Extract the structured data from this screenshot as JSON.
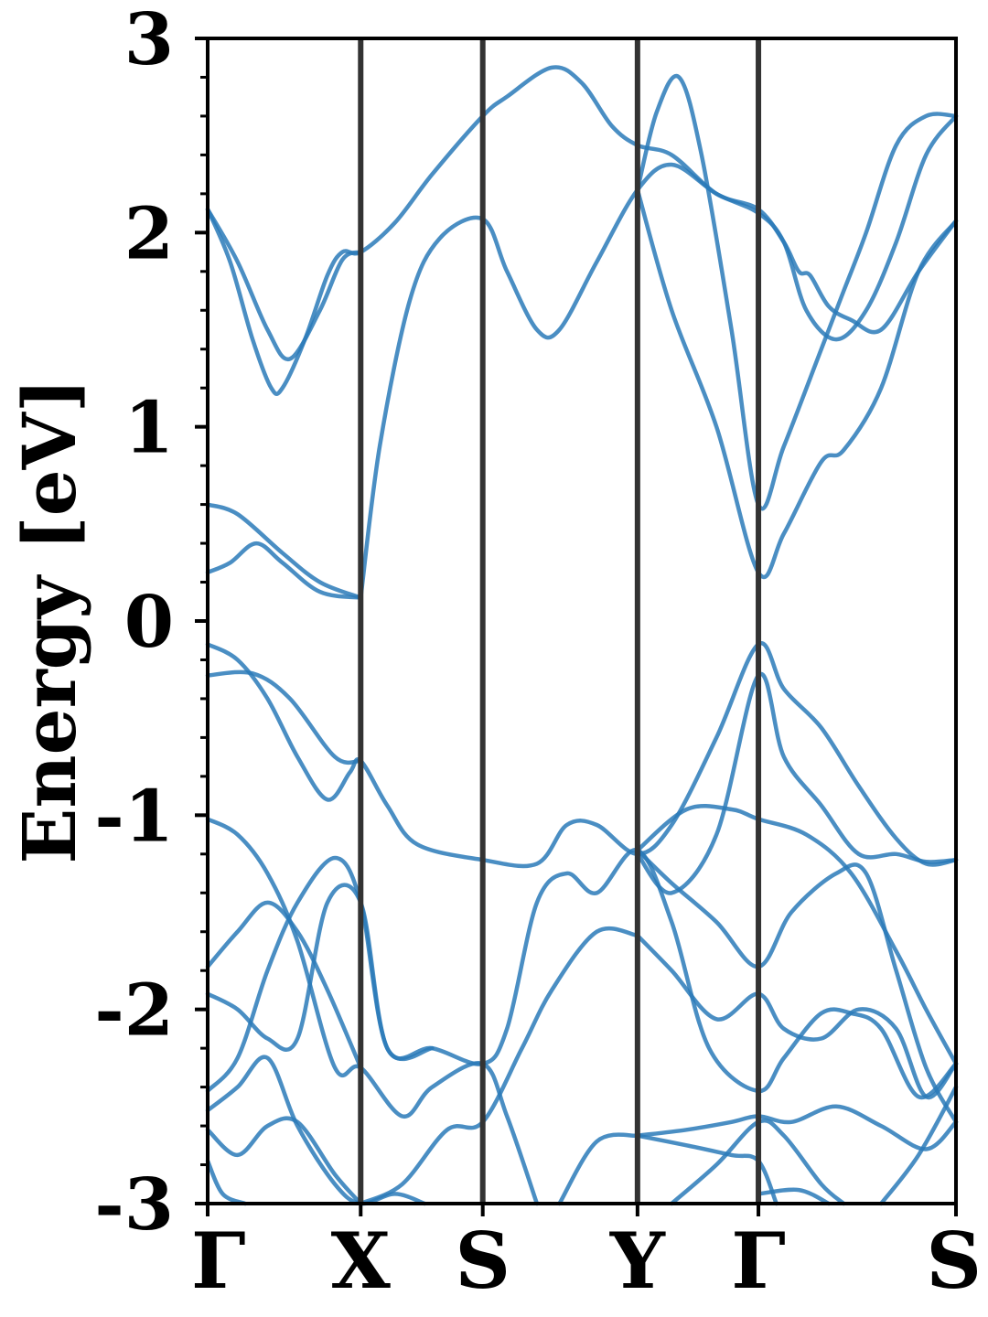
{
  "chart_data": {
    "type": "line",
    "ylabel": "Energy [eV]",
    "ylim": [
      -3,
      3
    ],
    "yticks": [
      "3",
      "2",
      "1",
      "0",
      "-1",
      "-2",
      "-3"
    ],
    "yticks_values": [
      3,
      2,
      1,
      0,
      -1,
      -2,
      -3
    ],
    "minor_tick_step": 0.2,
    "xlim": [
      0,
      1.0
    ],
    "kpoints": [
      {
        "label": "Γ",
        "x": 0.0
      },
      {
        "label": "X",
        "x": 0.2045
      },
      {
        "label": "S",
        "x": 0.3676
      },
      {
        "label": "Y",
        "x": 0.5744
      },
      {
        "label": "Γ",
        "x": 0.736
      },
      {
        "label": "S",
        "x": 1.0
      }
    ],
    "grid": false,
    "line_color": "#2a7ab9",
    "divider_color": "#333333",
    "series": [
      {
        "points": [
          [
            0.0,
            2.12
          ],
          [
            0.03,
            1.85
          ],
          [
            0.06,
            1.45
          ],
          [
            0.085,
            1.2
          ],
          [
            0.1,
            1.2
          ],
          [
            0.13,
            1.45
          ],
          [
            0.16,
            1.78
          ],
          [
            0.18,
            1.9
          ],
          [
            0.2045,
            1.9
          ],
          [
            0.25,
            2.05
          ],
          [
            0.3,
            2.3
          ],
          [
            0.3676,
            2.6
          ],
          [
            0.4,
            2.7
          ],
          [
            0.46,
            2.85
          ],
          [
            0.5,
            2.77
          ],
          [
            0.54,
            2.55
          ],
          [
            0.5744,
            2.45
          ],
          [
            0.62,
            2.4
          ],
          [
            0.68,
            2.2
          ],
          [
            0.736,
            2.12
          ],
          [
            0.77,
            1.95
          ],
          [
            0.79,
            1.8
          ],
          [
            0.805,
            1.78
          ],
          [
            0.83,
            1.62
          ],
          [
            0.86,
            1.55
          ],
          [
            0.9,
            1.5
          ],
          [
            0.95,
            1.8
          ],
          [
            1.0,
            2.06
          ]
        ]
      },
      {
        "points": [
          [
            0.0,
            2.12
          ],
          [
            0.04,
            1.85
          ],
          [
            0.08,
            1.5
          ],
          [
            0.11,
            1.35
          ],
          [
            0.15,
            1.6
          ],
          [
            0.18,
            1.86
          ],
          [
            0.2045,
            1.9
          ]
        ]
      },
      {
        "points": [
          [
            0.2045,
            0.12
          ],
          [
            0.23,
            0.9
          ],
          [
            0.27,
            1.65
          ],
          [
            0.31,
            1.97
          ],
          [
            0.3676,
            2.07
          ],
          [
            0.4,
            1.8
          ],
          [
            0.44,
            1.5
          ],
          [
            0.47,
            1.5
          ],
          [
            0.52,
            1.85
          ],
          [
            0.5744,
            2.22
          ],
          [
            0.62,
            2.35
          ],
          [
            0.68,
            2.2
          ],
          [
            0.736,
            2.1
          ],
          [
            0.77,
            1.95
          ],
          [
            0.8,
            1.6
          ],
          [
            0.84,
            1.45
          ],
          [
            0.88,
            1.6
          ],
          [
            0.92,
            1.95
          ],
          [
            0.96,
            2.4
          ],
          [
            1.0,
            2.6
          ]
        ]
      },
      {
        "points": [
          [
            0.5744,
            2.22
          ],
          [
            0.6,
            2.62
          ],
          [
            0.63,
            2.8
          ],
          [
            0.66,
            2.4
          ],
          [
            0.7,
            1.5
          ],
          [
            0.736,
            0.6
          ],
          [
            0.77,
            0.9
          ],
          [
            0.82,
            1.4
          ],
          [
            0.85,
            1.7
          ],
          [
            0.88,
            2.0
          ],
          [
            0.92,
            2.45
          ],
          [
            0.96,
            2.6
          ],
          [
            1.0,
            2.6
          ]
        ]
      },
      {
        "points": [
          [
            0.5744,
            2.22
          ],
          [
            0.62,
            1.6
          ],
          [
            0.68,
            1.0
          ],
          [
            0.736,
            0.25
          ],
          [
            0.77,
            0.45
          ],
          [
            0.82,
            0.82
          ],
          [
            0.85,
            0.88
          ],
          [
            0.9,
            1.2
          ],
          [
            0.95,
            1.8
          ],
          [
            1.0,
            2.06
          ]
        ]
      },
      {
        "points": [
          [
            0.0,
            0.6
          ],
          [
            0.04,
            0.55
          ],
          [
            0.1,
            0.35
          ],
          [
            0.15,
            0.2
          ],
          [
            0.2045,
            0.12
          ]
        ]
      },
      {
        "points": [
          [
            0.0,
            0.25
          ],
          [
            0.03,
            0.3
          ],
          [
            0.065,
            0.4
          ],
          [
            0.1,
            0.3
          ],
          [
            0.15,
            0.15
          ],
          [
            0.2045,
            0.12
          ]
        ]
      },
      {
        "points": [
          [
            0.0,
            -0.12
          ],
          [
            0.04,
            -0.2
          ],
          [
            0.08,
            -0.4
          ],
          [
            0.12,
            -0.7
          ],
          [
            0.16,
            -0.92
          ],
          [
            0.19,
            -0.78
          ],
          [
            0.2045,
            -0.72
          ],
          [
            0.24,
            -0.95
          ],
          [
            0.28,
            -1.15
          ],
          [
            0.3676,
            -1.23
          ],
          [
            0.44,
            -1.25
          ],
          [
            0.48,
            -1.05
          ],
          [
            0.52,
            -1.05
          ],
          [
            0.5744,
            -1.2
          ],
          [
            0.62,
            -1.05
          ],
          [
            0.68,
            -0.6
          ],
          [
            0.736,
            -0.12
          ],
          [
            0.77,
            -0.35
          ],
          [
            0.82,
            -0.55
          ],
          [
            0.87,
            -0.85
          ],
          [
            0.92,
            -1.12
          ],
          [
            0.96,
            -1.25
          ],
          [
            1.0,
            -1.23
          ]
        ]
      },
      {
        "points": [
          [
            0.0,
            -0.28
          ],
          [
            0.06,
            -0.27
          ],
          [
            0.11,
            -0.4
          ],
          [
            0.17,
            -0.7
          ],
          [
            0.2045,
            -0.72
          ]
        ]
      },
      {
        "points": [
          [
            0.5744,
            -1.2
          ],
          [
            0.62,
            -1.4
          ],
          [
            0.68,
            -1.1
          ],
          [
            0.736,
            -0.28
          ],
          [
            0.77,
            -0.7
          ],
          [
            0.82,
            -0.95
          ],
          [
            0.87,
            -1.2
          ],
          [
            0.92,
            -1.2
          ],
          [
            0.96,
            -1.24
          ],
          [
            1.0,
            -1.23
          ]
        ]
      },
      {
        "points": [
          [
            0.0,
            -1.02
          ],
          [
            0.04,
            -1.1
          ],
          [
            0.08,
            -1.3
          ],
          [
            0.12,
            -1.65
          ],
          [
            0.17,
            -2.3
          ],
          [
            0.2045,
            -2.3
          ],
          [
            0.26,
            -2.55
          ],
          [
            0.3,
            -2.4
          ],
          [
            0.3676,
            -2.28
          ],
          [
            0.4,
            -2.55
          ],
          [
            0.44,
            -3.0
          ]
        ]
      },
      {
        "points": [
          [
            0.5744,
            -1.18
          ],
          [
            0.64,
            -0.97
          ],
          [
            0.7,
            -0.97
          ],
          [
            0.736,
            -1.02
          ],
          [
            0.8,
            -1.1
          ],
          [
            0.86,
            -1.3
          ],
          [
            0.92,
            -1.7
          ],
          [
            0.96,
            -2.0
          ],
          [
            1.0,
            -2.28
          ]
        ]
      },
      {
        "points": [
          [
            0.0,
            -1.78
          ],
          [
            0.04,
            -1.6
          ],
          [
            0.08,
            -1.45
          ],
          [
            0.12,
            -1.6
          ],
          [
            0.16,
            -1.9
          ],
          [
            0.2045,
            -2.3
          ]
        ]
      },
      {
        "points": [
          [
            0.0,
            -2.42
          ],
          [
            0.04,
            -2.25
          ],
          [
            0.08,
            -1.8
          ],
          [
            0.12,
            -1.45
          ],
          [
            0.17,
            -1.22
          ],
          [
            0.2045,
            -1.45
          ],
          [
            0.24,
            -2.2
          ],
          [
            0.3,
            -2.2
          ],
          [
            0.3676,
            -2.28
          ],
          [
            0.4,
            -2.1
          ],
          [
            0.44,
            -1.45
          ],
          [
            0.48,
            -1.3
          ],
          [
            0.52,
            -1.4
          ],
          [
            0.5744,
            -1.18
          ],
          [
            0.62,
            -1.55
          ],
          [
            0.67,
            -2.2
          ],
          [
            0.736,
            -2.42
          ],
          [
            0.77,
            -2.25
          ],
          [
            0.82,
            -2.02
          ],
          [
            0.86,
            -2.02
          ],
          [
            0.9,
            -2.1
          ],
          [
            0.95,
            -2.45
          ],
          [
            1.0,
            -2.28
          ]
        ]
      },
      {
        "points": [
          [
            0.0,
            -1.92
          ],
          [
            0.04,
            -2.0
          ],
          [
            0.08,
            -2.15
          ],
          [
            0.12,
            -2.15
          ],
          [
            0.16,
            -1.45
          ],
          [
            0.2045,
            -1.45
          ],
          [
            0.24,
            -2.2
          ],
          [
            0.3,
            -2.2
          ]
        ]
      },
      {
        "points": [
          [
            0.5744,
            -1.62
          ],
          [
            0.62,
            -1.8
          ],
          [
            0.68,
            -2.05
          ],
          [
            0.736,
            -1.92
          ],
          [
            0.77,
            -2.1
          ],
          [
            0.82,
            -2.15
          ],
          [
            0.87,
            -2.0
          ],
          [
            0.92,
            -2.1
          ],
          [
            0.96,
            -2.45
          ],
          [
            1.0,
            -2.28
          ]
        ]
      },
      {
        "points": [
          [
            0.5744,
            -1.62
          ],
          [
            0.52,
            -1.6
          ],
          [
            0.46,
            -1.9
          ],
          [
            0.42,
            -2.2
          ],
          [
            0.3676,
            -2.58
          ],
          [
            0.32,
            -2.62
          ],
          [
            0.26,
            -2.9
          ],
          [
            0.2045,
            -3.0
          ]
        ]
      },
      {
        "points": [
          [
            0.5744,
            -1.18
          ],
          [
            0.62,
            -1.35
          ],
          [
            0.68,
            -1.55
          ],
          [
            0.736,
            -1.78
          ],
          [
            0.78,
            -1.5
          ],
          [
            0.84,
            -1.3
          ],
          [
            0.88,
            -1.3
          ],
          [
            0.92,
            -1.8
          ],
          [
            0.96,
            -2.3
          ],
          [
            1.0,
            -2.58
          ]
        ]
      },
      {
        "points": [
          [
            0.0,
            -2.52
          ],
          [
            0.04,
            -2.4
          ],
          [
            0.08,
            -2.25
          ],
          [
            0.12,
            -2.6
          ],
          [
            0.17,
            -2.9
          ],
          [
            0.2045,
            -3.0
          ],
          [
            0.25,
            -2.95
          ],
          [
            0.29,
            -3.0
          ]
        ]
      },
      {
        "points": [
          [
            0.0,
            -2.62
          ],
          [
            0.04,
            -2.75
          ],
          [
            0.08,
            -2.6
          ],
          [
            0.12,
            -2.58
          ],
          [
            0.17,
            -2.85
          ],
          [
            0.2045,
            -3.0
          ]
        ]
      },
      {
        "points": [
          [
            0.5744,
            -2.65
          ],
          [
            0.64,
            -2.62
          ],
          [
            0.7,
            -2.58
          ],
          [
            0.736,
            -2.55
          ],
          [
            0.78,
            -2.58
          ],
          [
            0.84,
            -2.5
          ],
          [
            0.9,
            -2.6
          ],
          [
            0.96,
            -2.72
          ],
          [
            1.0,
            -2.58
          ]
        ]
      },
      {
        "points": [
          [
            0.5744,
            -2.65
          ],
          [
            0.52,
            -2.68
          ],
          [
            0.47,
            -3.0
          ]
        ]
      },
      {
        "points": [
          [
            0.5744,
            -2.65
          ],
          [
            0.64,
            -2.7
          ],
          [
            0.7,
            -2.75
          ],
          [
            0.736,
            -2.78
          ],
          [
            0.76,
            -3.0
          ]
        ]
      },
      {
        "points": [
          [
            0.62,
            -3.0
          ],
          [
            0.68,
            -2.8
          ],
          [
            0.736,
            -2.58
          ],
          [
            0.77,
            -2.65
          ],
          [
            0.82,
            -2.9
          ],
          [
            0.85,
            -3.0
          ]
        ]
      },
      {
        "points": [
          [
            0.736,
            -2.95
          ],
          [
            0.79,
            -2.93
          ],
          [
            0.83,
            -3.0
          ]
        ]
      },
      {
        "points": [
          [
            0.9,
            -3.0
          ],
          [
            0.95,
            -2.75
          ],
          [
            1.0,
            -2.4
          ]
        ]
      },
      {
        "points": [
          [
            0.0,
            -2.78
          ],
          [
            0.02,
            -2.95
          ],
          [
            0.05,
            -3.0
          ]
        ]
      }
    ]
  }
}
